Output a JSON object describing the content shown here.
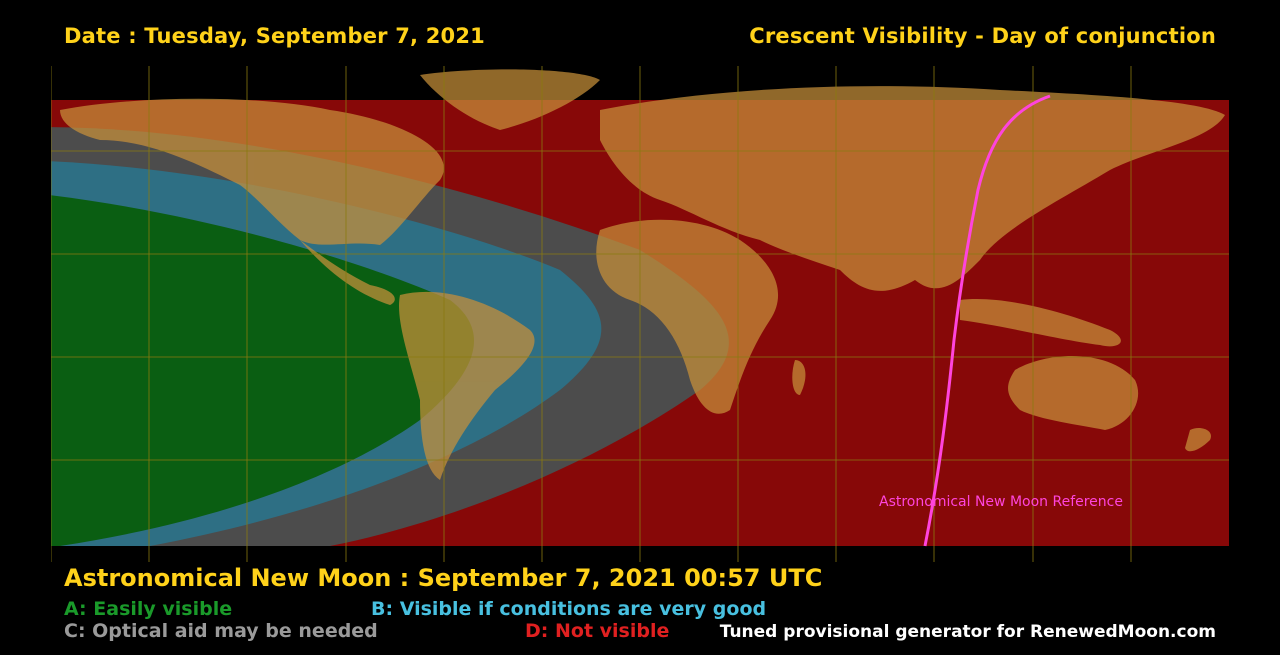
{
  "header": {
    "date_label": "Date : Tuesday, September 7, 2021",
    "title": "Crescent Visibility - Day of conjunction"
  },
  "map": {
    "new_moon_line_label": "Astronomical New Moon Reference",
    "new_moon_line_color": "#ff44dd"
  },
  "footer": {
    "new_moon_time": "Astronomical New Moon : September 7, 2021 00:57 UTC",
    "credit": "Tuned provisional generator for RenewedMoon.com"
  },
  "legend": [
    {
      "code": "A",
      "label": "A: Easily visible",
      "color": "#1a9a2a"
    },
    {
      "code": "B",
      "label": "B: Visible if conditions are very good",
      "color": "#48c0e0"
    },
    {
      "code": "C",
      "label": "C: Optical aid may be needed",
      "color": "#9a9a9a"
    },
    {
      "code": "D",
      "label": "D: Not visible",
      "color": "#e02020"
    }
  ],
  "colors": {
    "text_accent": "#ffd21a",
    "zone_a": "#0a5e12",
    "zone_b": "#2e6f84",
    "zone_c": "#4c4c4c",
    "zone_d": "#870808",
    "land": "#c8903a",
    "grid": "#8a7a10"
  }
}
